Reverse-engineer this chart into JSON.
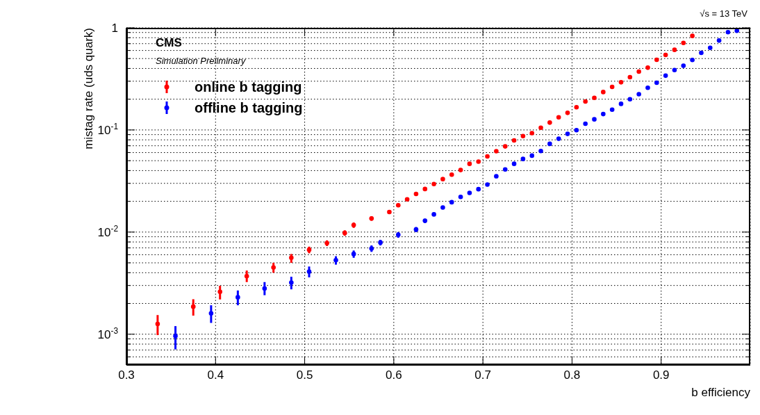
{
  "chart_data": {
    "type": "scatter",
    "xlabel": "b efficiency",
    "ylabel": "mistag rate (uds quark)",
    "annotations": [
      "CMS",
      "Simulation Preliminary",
      "√s = 13 TeV"
    ],
    "xlim": [
      0.3,
      1
    ],
    "xticks": [
      0.3,
      0.4,
      0.5,
      0.6,
      0.7,
      0.8,
      0.9
    ],
    "ylim": [
      0.0005,
      1
    ],
    "log": "y",
    "yticks": [
      {
        "value": 0.0005,
        "label": null
      },
      {
        "value": 0.0006,
        "label": null
      },
      {
        "value": 0.0007,
        "label": null
      },
      {
        "value": 0.0008,
        "label": null
      },
      {
        "value": 0.0009,
        "label": null
      },
      {
        "value": 0.001,
        "label": "10$^{-3}$"
      },
      {
        "value": 0.002,
        "label": null
      },
      {
        "value": 0.003,
        "label": null
      },
      {
        "value": 0.004,
        "label": null
      },
      {
        "value": 0.005,
        "label": null
      },
      {
        "value": 0.006,
        "label": null
      },
      {
        "value": 0.007,
        "label": null
      },
      {
        "value": 0.008,
        "label": null
      },
      {
        "value": 0.009,
        "label": null
      },
      {
        "value": 0.01,
        "label": "10$^{-2}$"
      },
      {
        "value": 0.02,
        "label": null
      },
      {
        "value": 0.03,
        "label": null
      },
      {
        "value": 0.04,
        "label": null
      },
      {
        "value": 0.05,
        "label": null
      },
      {
        "value": 0.06,
        "label": null
      },
      {
        "value": 0.07,
        "label": null
      },
      {
        "value": 0.08,
        "label": null
      },
      {
        "value": 0.09,
        "label": null
      },
      {
        "value": 0.1,
        "label": "10$^{-1}$"
      },
      {
        "value": 0.2,
        "label": null
      },
      {
        "value": 0.3,
        "label": null
      },
      {
        "value": 0.4,
        "label": null
      },
      {
        "value": 0.5,
        "label": null
      },
      {
        "value": 0.6,
        "label": null
      },
      {
        "value": 0.7,
        "label": null
      },
      {
        "value": 0.8,
        "label": null
      },
      {
        "value": 0.9,
        "label": null
      },
      {
        "value": 1,
        "label": "1"
      }
    ],
    "grid": true,
    "legend": "top left",
    "marker": "circle",
    "series": [
      {
        "name": "online b tagging",
        "color": "#ff0000",
        "x": [
          0.335,
          0.375,
          0.405,
          0.435,
          0.465,
          0.485,
          0.505,
          0.525,
          0.545,
          0.555,
          0.575,
          0.595,
          0.605,
          0.615,
          0.625,
          0.635,
          0.645,
          0.655,
          0.665,
          0.675,
          0.685,
          0.695,
          0.705,
          0.715,
          0.725,
          0.735,
          0.745,
          0.755,
          0.765,
          0.775,
          0.785,
          0.795,
          0.805,
          0.815,
          0.825,
          0.835,
          0.845,
          0.855,
          0.865,
          0.875,
          0.885,
          0.895,
          0.905,
          0.915,
          0.925,
          0.935
        ],
        "values": [
          0.00126,
          0.00186,
          0.0026,
          0.0037,
          0.0045,
          0.0056,
          0.0067,
          0.0078,
          0.0098,
          0.0117,
          0.0136,
          0.0157,
          0.0183,
          0.0209,
          0.0236,
          0.0264,
          0.0295,
          0.033,
          0.0365,
          0.0405,
          0.0466,
          0.049,
          0.055,
          0.062,
          0.069,
          0.079,
          0.087,
          0.093,
          0.105,
          0.118,
          0.133,
          0.147,
          0.167,
          0.19,
          0.206,
          0.235,
          0.264,
          0.293,
          0.329,
          0.373,
          0.407,
          0.486,
          0.543,
          0.609,
          0.711,
          0.833
        ],
        "errors": [
          [
            0.00098,
            0.00154
          ],
          [
            0.00152,
            0.0022
          ],
          [
            0.00219,
            0.00298
          ],
          [
            0.00324,
            0.0042
          ],
          [
            0.004,
            0.005
          ],
          [
            0.005,
            0.0061
          ],
          [
            0.0062,
            0.0072
          ],
          [
            0.0073,
            0.0083
          ],
          [
            0.0092,
            0.0104
          ],
          [
            0.011,
            0.0124
          ],
          [
            0.0129,
            0.0143
          ],
          [
            0.015,
            0.0164
          ],
          null,
          null,
          null,
          null,
          null,
          null,
          null,
          null,
          null,
          null,
          null,
          null,
          null,
          null,
          null,
          null,
          null,
          null,
          null,
          null,
          null,
          null,
          null,
          null,
          null,
          null,
          null,
          null,
          null,
          null,
          null,
          null,
          null,
          null
        ]
      },
      {
        "name": "offline b tagging",
        "color": "#0000ff",
        "x": [
          0.355,
          0.395,
          0.425,
          0.455,
          0.485,
          0.505,
          0.535,
          0.555,
          0.575,
          0.585,
          0.605,
          0.625,
          0.635,
          0.645,
          0.655,
          0.665,
          0.675,
          0.685,
          0.695,
          0.705,
          0.715,
          0.725,
          0.735,
          0.745,
          0.755,
          0.765,
          0.775,
          0.785,
          0.795,
          0.805,
          0.815,
          0.825,
          0.835,
          0.845,
          0.855,
          0.865,
          0.875,
          0.885,
          0.895,
          0.905,
          0.915,
          0.925,
          0.935,
          0.945,
          0.955,
          0.965,
          0.975,
          0.985
        ],
        "values": [
          0.00096,
          0.0016,
          0.0023,
          0.0028,
          0.0032,
          0.0041,
          0.0053,
          0.0061,
          0.0069,
          0.0079,
          0.0094,
          0.0106,
          0.0129,
          0.0149,
          0.0174,
          0.0196,
          0.0221,
          0.0242,
          0.0263,
          0.0292,
          0.0352,
          0.041,
          0.0466,
          0.052,
          0.056,
          0.0622,
          0.0731,
          0.082,
          0.0915,
          0.0995,
          0.115,
          0.127,
          0.143,
          0.158,
          0.18,
          0.2,
          0.224,
          0.259,
          0.29,
          0.34,
          0.386,
          0.425,
          0.484,
          0.569,
          0.638,
          0.75,
          0.906,
          0.935
        ],
        "errors": [
          [
            0.00071,
            0.0012
          ],
          [
            0.00129,
            0.00192
          ],
          [
            0.00192,
            0.00268
          ],
          [
            0.00241,
            0.00324
          ],
          [
            0.00275,
            0.00365
          ],
          [
            0.0036,
            0.0046
          ],
          [
            0.0048,
            0.0058
          ],
          [
            0.0056,
            0.0066
          ],
          [
            0.0064,
            0.0074
          ],
          [
            0.0074,
            0.0084
          ],
          [
            0.0088,
            0.01
          ],
          [
            0.01,
            0.0112
          ],
          [
            0.0123,
            0.0135
          ],
          [
            0.0143,
            0.0155
          ],
          null,
          null,
          null,
          null,
          null,
          null,
          null,
          null,
          null,
          null,
          null,
          null,
          null,
          null,
          null,
          null,
          null,
          null,
          null,
          null,
          null,
          null,
          null,
          null,
          null,
          null,
          null,
          null,
          null,
          null,
          null,
          null,
          null,
          null
        ]
      }
    ]
  }
}
